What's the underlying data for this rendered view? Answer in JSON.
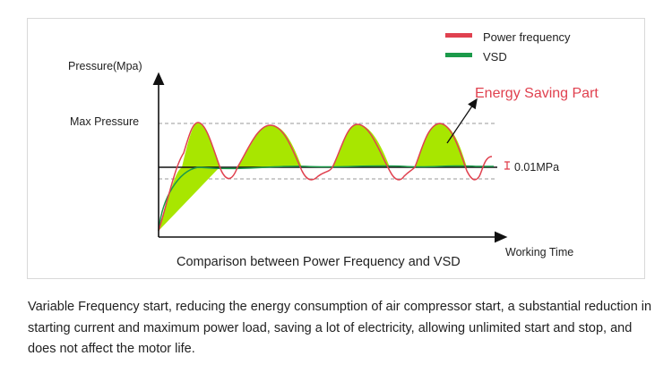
{
  "legend": {
    "items": [
      {
        "label": "Power frequency",
        "color": "#e0414f"
      },
      {
        "label": "VSD",
        "color": "#1b9a4a"
      }
    ]
  },
  "chart": {
    "y_axis_label": "Pressure(Mpa)",
    "x_axis_label": "Working Time",
    "max_pressure_label": "Max Pressure",
    "tolerance_label": "0.01MPa",
    "annotation": "Energy Saving Part",
    "caption": "Comparison between Power Frequency and VSD"
  },
  "colors": {
    "power_frequency": "#e0414f",
    "vsd": "#1b9a4a",
    "saving_fill": "#a8e600",
    "annotation_text": "#e0414f",
    "axis": "#111111",
    "dashed": "#999999"
  },
  "description": "Variable Frequency start, reducing the energy consumption of air compressor start, a substantial reduction in starting current and maximum power load, saving a lot of electricity, allowing unlimited start and stop, and does not affect the motor life."
}
